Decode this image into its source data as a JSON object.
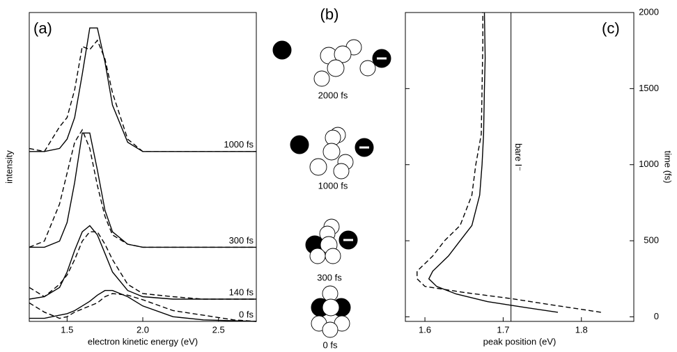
{
  "chart_data": [
    {
      "type": "offset-spectra",
      "panel": "(a)",
      "x_label": "electron kinetic energy (eV)",
      "y_label": "intensity",
      "xlim": [
        1.25,
        2.75
      ],
      "xticks": [
        {
          "value": 1.5,
          "label": "1.5"
        },
        {
          "value": 2.0,
          "label": "2.0"
        },
        {
          "value": 2.5,
          "label": "2.5"
        }
      ],
      "ylim": [
        0,
        10
      ],
      "x": [
        1.25,
        1.35,
        1.45,
        1.5,
        1.55,
        1.6,
        1.65,
        1.7,
        1.75,
        1.8,
        1.9,
        2.0,
        2.2,
        2.4,
        2.6,
        2.75
      ],
      "groups": [
        {
          "label": "1000 fs",
          "solid": [
            5.5,
            5.5,
            5.6,
            5.9,
            6.6,
            8.0,
            9.5,
            9.5,
            8.4,
            7.0,
            5.8,
            5.5,
            5.5,
            5.5,
            5.5,
            5.5
          ],
          "dashed": [
            5.6,
            5.5,
            6.3,
            6.6,
            7.5,
            8.9,
            8.8,
            9.1,
            8.5,
            7.4,
            5.9,
            5.5,
            5.5,
            5.5,
            5.5,
            5.5
          ]
        },
        {
          "label": "300 fs",
          "solid": [
            2.4,
            2.4,
            2.6,
            3.2,
            4.5,
            6.1,
            6.1,
            4.9,
            3.6,
            2.9,
            2.5,
            2.4,
            2.4,
            2.4,
            2.4,
            2.4
          ],
          "dashed": [
            2.4,
            2.6,
            3.8,
            4.8,
            5.8,
            6.2,
            5.6,
            4.4,
            3.4,
            2.8,
            2.5,
            2.4,
            2.4,
            2.4,
            2.4,
            2.4
          ]
        },
        {
          "label": "140 fs",
          "solid": [
            0.72,
            0.8,
            1.1,
            1.6,
            2.3,
            2.9,
            3.1,
            2.8,
            2.2,
            1.6,
            1.0,
            0.8,
            0.72,
            0.72,
            0.72,
            0.72
          ],
          "dashed": [
            1.1,
            0.8,
            1.2,
            1.5,
            2.0,
            2.6,
            2.9,
            2.9,
            2.5,
            2.0,
            1.2,
            0.9,
            0.8,
            0.72,
            0.72,
            0.72
          ]
        },
        {
          "label": "0 fs",
          "solid": [
            0.1,
            0.1,
            0.2,
            0.25,
            0.35,
            0.5,
            0.65,
            0.85,
            1.0,
            1.0,
            0.8,
            0.5,
            0.15,
            0.05,
            0.02,
            0
          ],
          "dashed": [
            0.6,
            0.3,
            0.1,
            0.15,
            0.3,
            0.4,
            0.5,
            0.6,
            0.8,
            0.9,
            0.85,
            0.7,
            0.35,
            0.2,
            0.05,
            0
          ]
        }
      ]
    },
    {
      "type": "trajectory",
      "panel": "(c)",
      "x_label": "peak position (eV)",
      "y_label": "time (fs)",
      "xlim": [
        1.575,
        1.867
      ],
      "xticks": [
        {
          "value": 1.6,
          "label": "1.6"
        },
        {
          "value": 1.7,
          "label": "1.7"
        },
        {
          "value": 1.8,
          "label": "1.8"
        }
      ],
      "ylim": [
        -30,
        2000
      ],
      "yticks": [
        0,
        500,
        1000,
        1500,
        2000
      ],
      "reference_line": {
        "x": 1.71,
        "label": "bare I⁻"
      },
      "series": [
        {
          "style": "solid",
          "x": [
            1.77,
            1.73,
            1.68,
            1.64,
            1.615,
            1.605,
            1.61,
            1.63,
            1.645,
            1.66,
            1.67,
            1.673,
            1.675,
            1.676,
            1.677,
            1.676
          ],
          "values": [
            30,
            60,
            100,
            150,
            200,
            250,
            300,
            400,
            500,
            600,
            800,
            1000,
            1200,
            1500,
            1700,
            2000
          ]
        },
        {
          "style": "dashed",
          "x": [
            1.825,
            1.76,
            1.71,
            1.65,
            1.6,
            1.59,
            1.59,
            1.61,
            1.625,
            1.645,
            1.66,
            1.665,
            1.672,
            1.673,
            1.674,
            1.674
          ],
          "values": [
            30,
            80,
            120,
            160,
            200,
            250,
            300,
            400,
            500,
            600,
            800,
            1000,
            1200,
            1500,
            1800,
            2000
          ]
        }
      ]
    }
  ],
  "diagram": {
    "panel": "(b)",
    "labels": [
      "2000 fs",
      "1000 fs",
      "300 fs",
      "0 fs"
    ]
  }
}
